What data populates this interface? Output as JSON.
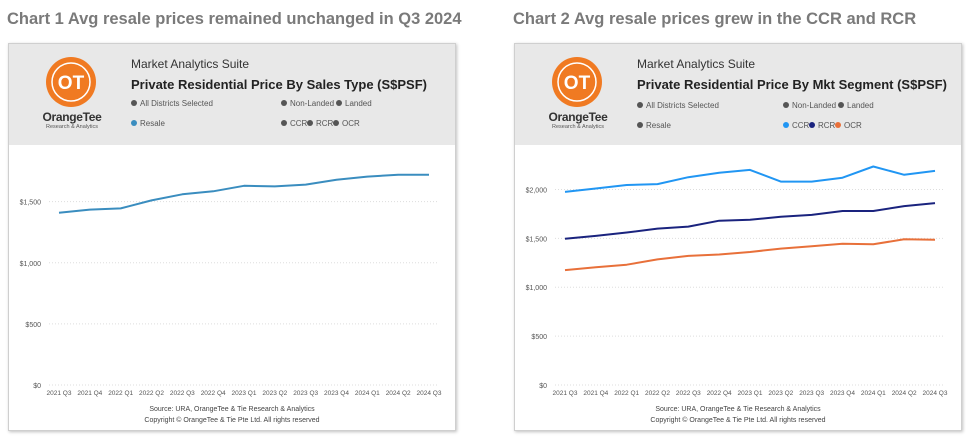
{
  "charts": [
    {
      "heading": "Chart 1 Avg resale prices remained unchanged in Q3 2024",
      "brand": {
        "name": "OrangeTee",
        "sub": "Research & Analytics",
        "logo_text": "OT"
      },
      "suite": "Market Analytics Suite",
      "title": "Private Residential Price By Sales Type (S$PSF)",
      "filters": [
        {
          "label": "All Districts Selected",
          "color": "#555555"
        },
        {
          "label": "Resale",
          "color": "#3a8dbf"
        },
        {
          "label": "Non-Landed",
          "color": "#555555"
        },
        {
          "label": "Landed",
          "color": "#555555"
        },
        {
          "label": "CCR",
          "color": "#555555"
        },
        {
          "label": "RCR",
          "color": "#555555"
        },
        {
          "label": "OCR",
          "color": "#555555"
        }
      ],
      "source": "Source: URA, OrangeTee & Tie Research & Analytics",
      "copyright": "Copyright © OrangeTee & Tie Pte Ltd. All rights reserved"
    },
    {
      "heading": "Chart 2 Avg resale prices grew in the CCR and RCR",
      "brand": {
        "name": "OrangeTee",
        "sub": "Research & Analytics",
        "logo_text": "OT"
      },
      "suite": "Market Analytics Suite",
      "title": "Private Residential Price By Mkt Segment (S$PSF)",
      "filters": [
        {
          "label": "All Districts Selected",
          "color": "#555555"
        },
        {
          "label": "Resale",
          "color": "#555555"
        },
        {
          "label": "Non-Landed",
          "color": "#555555"
        },
        {
          "label": "Landed",
          "color": "#555555"
        },
        {
          "label": "CCR",
          "color": "#2196f3"
        },
        {
          "label": "RCR",
          "color": "#1a237e"
        },
        {
          "label": "OCR",
          "color": "#e8703a"
        }
      ],
      "source": "Source: URA, OrangeTee & Tie Research & Analytics",
      "copyright": "Copyright © OrangeTee & Tie Pte Ltd. All rights reserved"
    }
  ],
  "chart_data": [
    {
      "type": "line",
      "title": "Private Residential Price By Sales Type (S$PSF)",
      "categories": [
        "2021 Q3",
        "2021 Q4",
        "2022 Q1",
        "2022 Q2",
        "2022 Q3",
        "2022 Q4",
        "2023 Q1",
        "2023 Q2",
        "2023 Q3",
        "2023 Q4",
        "2024 Q1",
        "2024 Q2",
        "2024 Q3"
      ],
      "y_ticks": [
        0,
        500,
        1000,
        1500
      ],
      "y_tick_labels": [
        "$0",
        "$500",
        "$1,000",
        "$1,500"
      ],
      "ylim": [
        0,
        1800
      ],
      "grid": true,
      "series": [
        {
          "name": "Resale",
          "color": "#3a8dbf",
          "values": [
            1410,
            1435,
            1445,
            1510,
            1560,
            1585,
            1630,
            1625,
            1640,
            1680,
            1705,
            1720,
            1720
          ]
        }
      ]
    },
    {
      "type": "line",
      "title": "Private Residential Price By Mkt Segment (S$PSF)",
      "categories": [
        "2021 Q3",
        "2021 Q4",
        "2022 Q1",
        "2022 Q2",
        "2022 Q3",
        "2022 Q4",
        "2023 Q1",
        "2023 Q2",
        "2023 Q3",
        "2023 Q4",
        "2024 Q1",
        "2024 Q2",
        "2024 Q3"
      ],
      "y_ticks": [
        0,
        500,
        1000,
        1500,
        2000
      ],
      "y_tick_labels": [
        "$0",
        "$500",
        "$1,000",
        "$1,500",
        "$2,000"
      ],
      "ylim": [
        0,
        2250
      ],
      "grid": true,
      "series": [
        {
          "name": "CCR",
          "color": "#2196f3",
          "values": [
            1975,
            2010,
            2045,
            2055,
            2125,
            2170,
            2200,
            2080,
            2080,
            2120,
            2235,
            2150,
            2190
          ]
        },
        {
          "name": "RCR",
          "color": "#1a237e",
          "values": [
            1495,
            1525,
            1560,
            1600,
            1620,
            1680,
            1690,
            1720,
            1740,
            1780,
            1780,
            1830,
            1860
          ]
        },
        {
          "name": "OCR",
          "color": "#e8703a",
          "values": [
            1175,
            1205,
            1230,
            1285,
            1320,
            1335,
            1360,
            1395,
            1420,
            1445,
            1440,
            1490,
            1485
          ]
        }
      ]
    }
  ]
}
